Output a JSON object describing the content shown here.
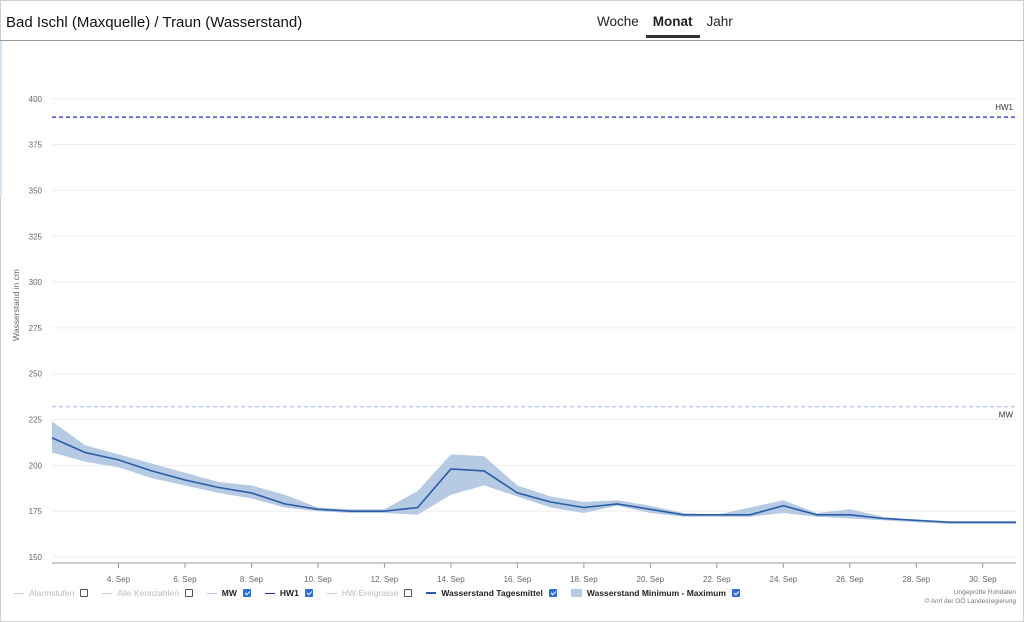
{
  "header": {
    "title": "Bad Ischl (Maxquelle) / Traun (Wasserstand)",
    "tabs": [
      {
        "label": "Woche",
        "active": false
      },
      {
        "label": "Monat",
        "active": true
      },
      {
        "label": "Jahr",
        "active": false
      }
    ]
  },
  "legend": [
    {
      "label": "Alarmstufen",
      "checked": false,
      "enabled": false,
      "color": "#cccccc"
    },
    {
      "label": "Alle Kennzahlen",
      "checked": false,
      "enabled": false,
      "color": "#cccccc"
    },
    {
      "label": "MW",
      "checked": true,
      "enabled": true,
      "color": "#b4c7f0"
    },
    {
      "label": "HW1",
      "checked": true,
      "enabled": true,
      "color": "#1f2fbf"
    },
    {
      "label": "HW-Ereignisse",
      "checked": false,
      "enabled": false,
      "color": "#cccccc"
    },
    {
      "label": "Wasserstand Tagesmittel",
      "checked": true,
      "enabled": true,
      "color": "#2a5ca8"
    },
    {
      "label": "Wasserstand Minimum - Maximum",
      "checked": true,
      "enabled": true,
      "color": "#b6cae3"
    }
  ],
  "credit": {
    "line1": "Ungeprüfte Rohdaten",
    "line2": "© Amt der OÖ Landesregierung"
  },
  "colors": {
    "mean_line": "#2a5ca8",
    "range_band": "#b6cae3",
    "hw1_line": "#1f2fbf",
    "mw_line": "#b4c7f0",
    "grid": "#eeeeee"
  },
  "chart_data": {
    "type": "line",
    "ylabel": "Wasserstand in cm",
    "ylim": [
      150,
      425
    ],
    "yticks": [
      150,
      175,
      200,
      225,
      250,
      275,
      300,
      325,
      350,
      375,
      400
    ],
    "xlim": [
      2,
      31
    ],
    "xticks": [
      {
        "day": 4,
        "label": "4. Sep"
      },
      {
        "day": 6,
        "label": "6. Sep"
      },
      {
        "day": 8,
        "label": "8. Sep"
      },
      {
        "day": 10,
        "label": "10. Sep"
      },
      {
        "day": 12,
        "label": "12. Sep"
      },
      {
        "day": 14,
        "label": "14. Sep"
      },
      {
        "day": 16,
        "label": "16. Sep"
      },
      {
        "day": 18,
        "label": "18. Sep"
      },
      {
        "day": 20,
        "label": "20. Sep"
      },
      {
        "day": 22,
        "label": "22. Sep"
      },
      {
        "day": 24,
        "label": "24. Sep"
      },
      {
        "day": 26,
        "label": "26. Sep"
      },
      {
        "day": 28,
        "label": "28. Sep"
      },
      {
        "day": 30,
        "label": "30. Sep"
      }
    ],
    "reference_lines": [
      {
        "name": "HW1",
        "value": 390,
        "style": "dashed"
      },
      {
        "name": "MW",
        "value": 232,
        "style": "dashed"
      }
    ],
    "series": [
      {
        "name": "Wasserstand Tagesmittel",
        "x": [
          2,
          3,
          4,
          5,
          6,
          7,
          8,
          9,
          10,
          11,
          12,
          13,
          14,
          15,
          16,
          17,
          18,
          19,
          20,
          21,
          22,
          23,
          24,
          25,
          26,
          27,
          28,
          29,
          30,
          31
        ],
        "values": [
          215,
          207,
          203,
          197,
          192,
          188,
          185,
          179,
          176,
          175,
          175,
          177,
          198,
          197,
          185,
          180,
          177,
          179,
          176,
          173,
          173,
          173,
          178,
          173,
          173,
          171,
          170,
          169,
          169,
          169
        ]
      },
      {
        "name": "Wasserstand Minimum - Maximum",
        "x": [
          2,
          3,
          4,
          5,
          6,
          7,
          8,
          9,
          10,
          11,
          12,
          13,
          14,
          15,
          16,
          17,
          18,
          19,
          20,
          21,
          22,
          23,
          24,
          25,
          26,
          27,
          28,
          29,
          30,
          31
        ],
        "min": [
          207,
          202,
          199,
          193,
          189,
          185,
          182,
          177,
          175,
          174,
          174,
          173,
          184,
          189,
          183,
          177,
          174,
          178,
          174,
          172,
          172,
          172,
          174,
          172,
          171,
          170,
          169,
          168,
          168,
          168
        ],
        "max": [
          224,
          211,
          206,
          201,
          196,
          191,
          189,
          184,
          177,
          176,
          176,
          186,
          206,
          205,
          189,
          183,
          180,
          181,
          178,
          174,
          173,
          177,
          181,
          174,
          176,
          172,
          170,
          169,
          169,
          169
        ]
      }
    ]
  }
}
